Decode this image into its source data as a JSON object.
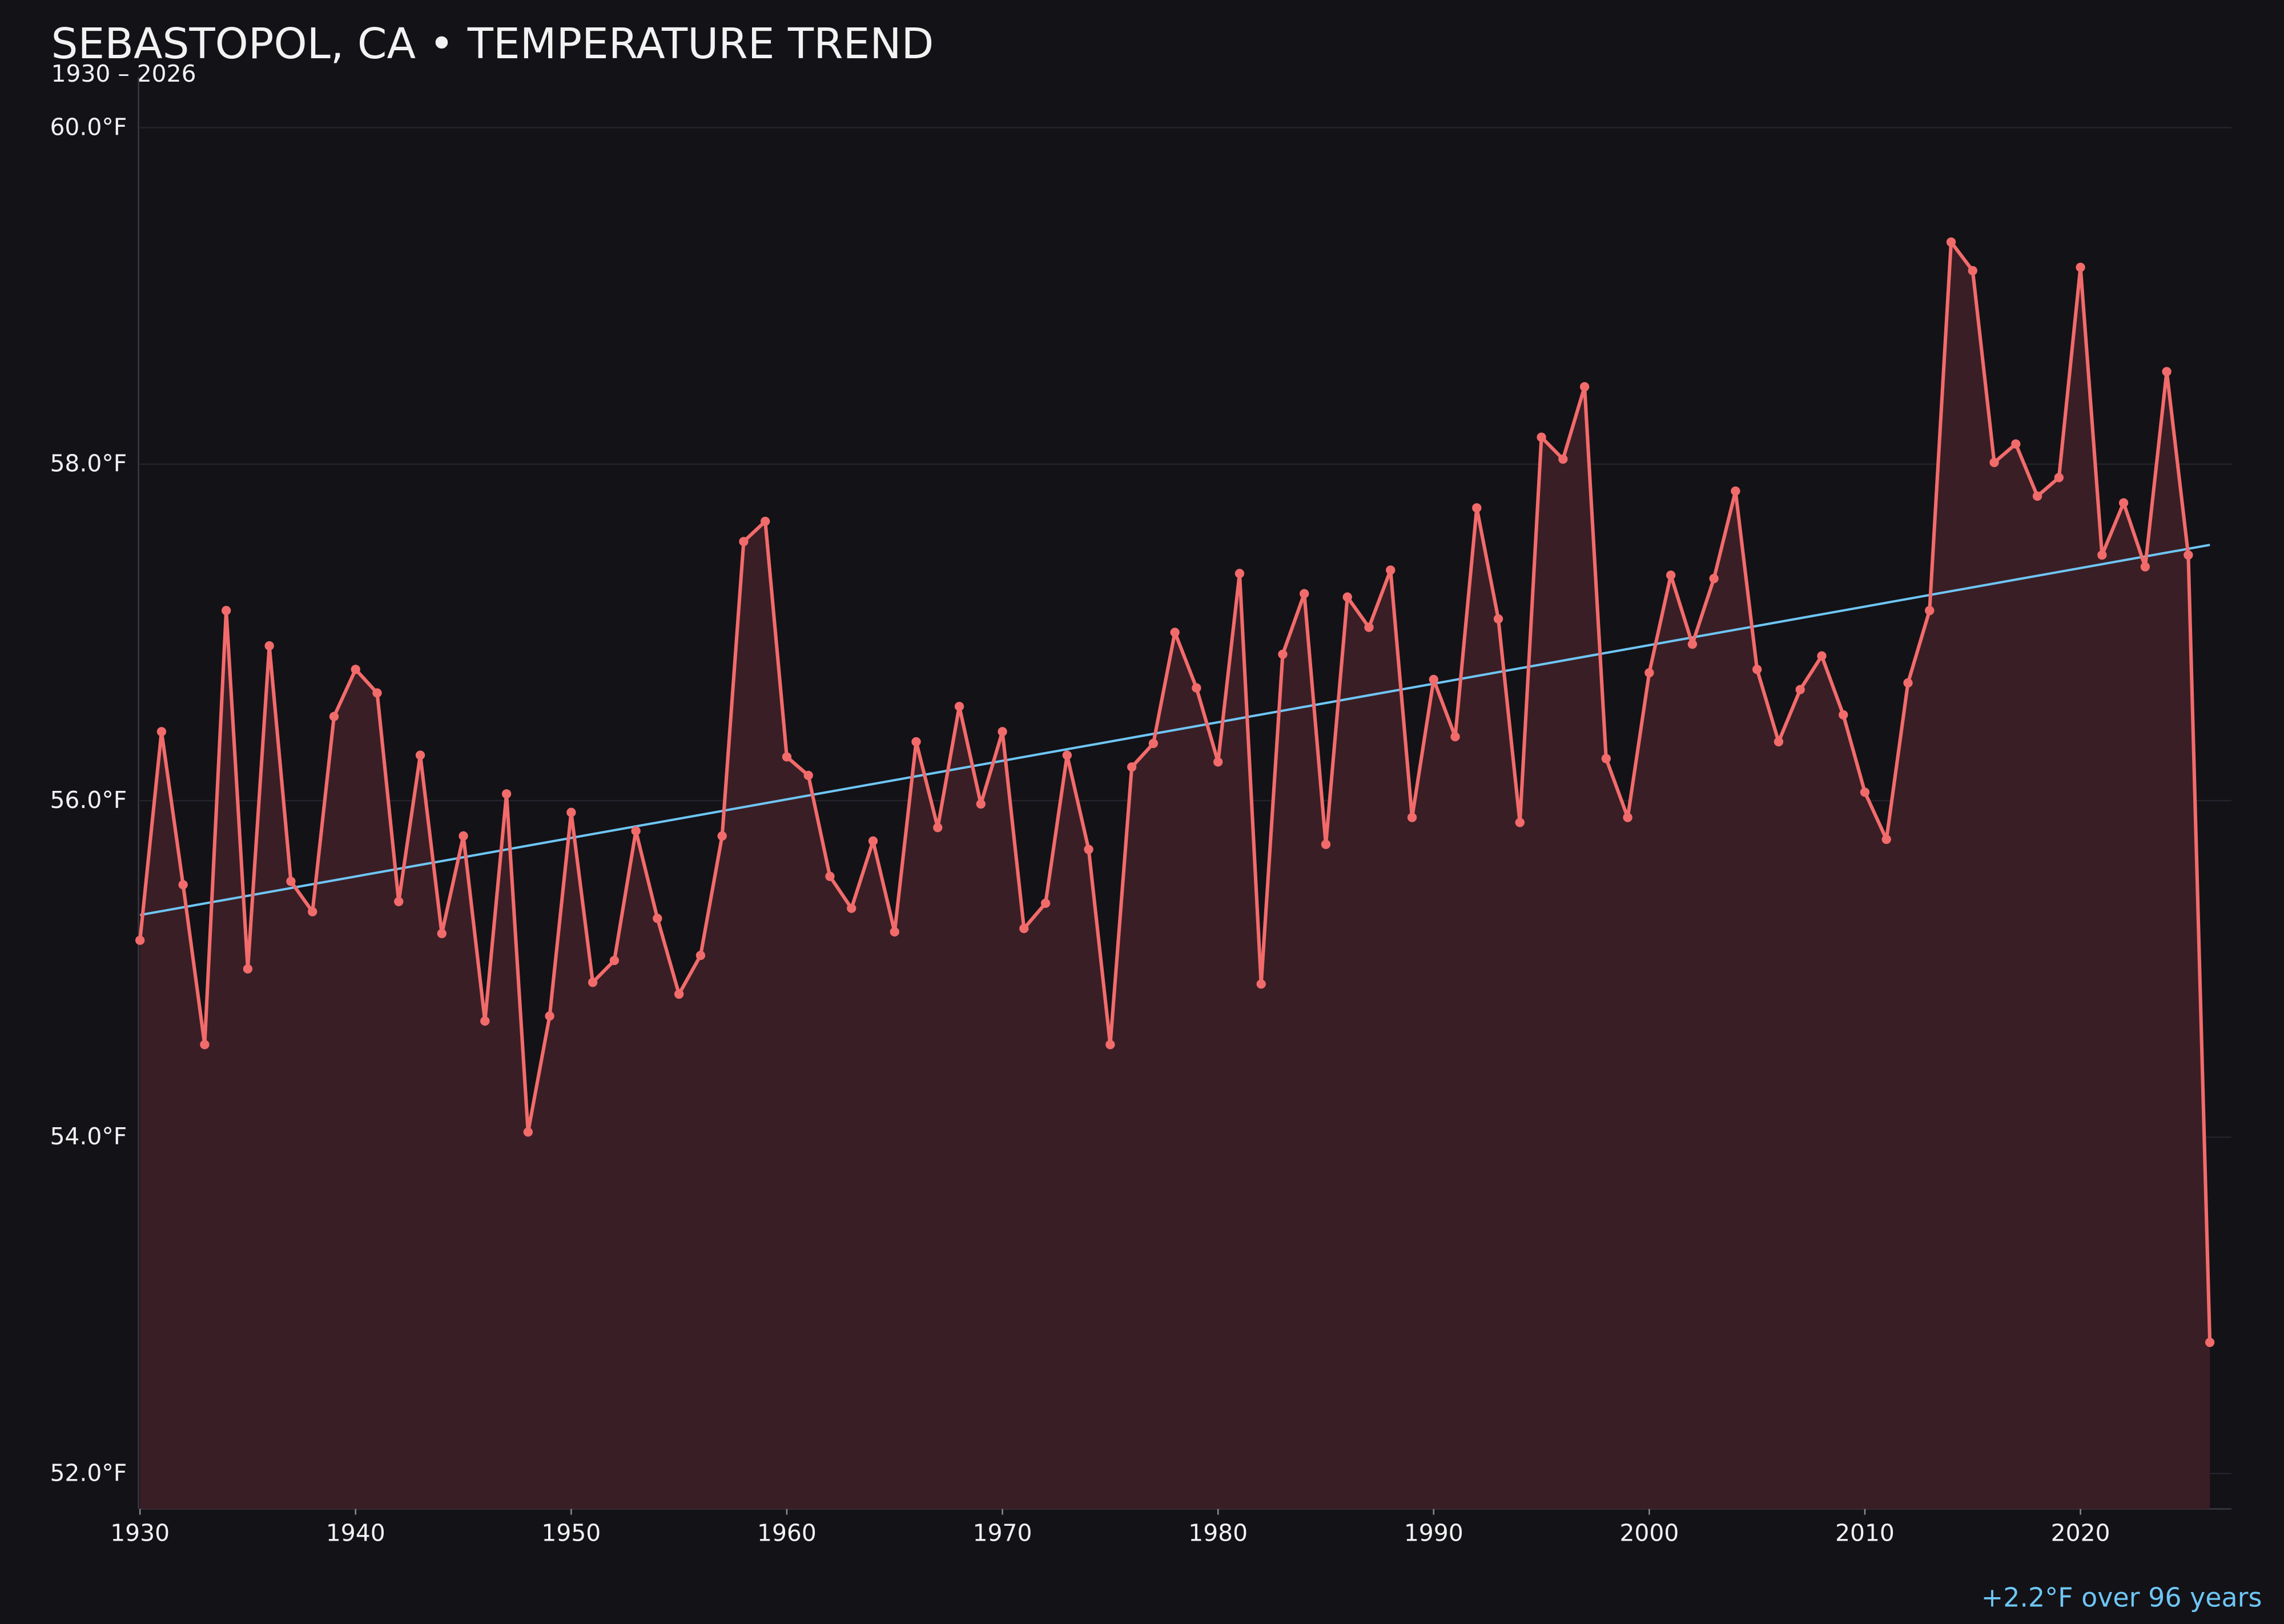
{
  "chart_data": {
    "type": "line",
    "title": "SEBASTOPOL, CA • TEMPERATURE TREND",
    "subtitle": "1930 – 2026",
    "annotation": "+2.2°F over 96 years",
    "x": [
      1930,
      1931,
      1932,
      1933,
      1934,
      1935,
      1936,
      1937,
      1938,
      1939,
      1940,
      1941,
      1942,
      1943,
      1944,
      1945,
      1946,
      1947,
      1948,
      1949,
      1950,
      1951,
      1952,
      1953,
      1954,
      1955,
      1956,
      1957,
      1958,
      1959,
      1960,
      1961,
      1962,
      1963,
      1964,
      1965,
      1966,
      1967,
      1968,
      1969,
      1970,
      1971,
      1972,
      1973,
      1974,
      1975,
      1976,
      1977,
      1978,
      1979,
      1980,
      1981,
      1982,
      1983,
      1984,
      1985,
      1986,
      1987,
      1988,
      1989,
      1990,
      1991,
      1992,
      1993,
      1994,
      1995,
      1996,
      1997,
      1998,
      1999,
      2000,
      2001,
      2002,
      2003,
      2004,
      2005,
      2006,
      2007,
      2008,
      2009,
      2010,
      2011,
      2012,
      2013,
      2014,
      2015,
      2016,
      2017,
      2018,
      2019,
      2020,
      2021,
      2022,
      2023,
      2024,
      2025,
      2026
    ],
    "values": [
      55.17,
      56.41,
      55.5,
      54.55,
      57.13,
      55.0,
      56.92,
      55.52,
      55.34,
      56.5,
      56.78,
      56.64,
      55.4,
      56.27,
      55.21,
      55.79,
      54.69,
      56.04,
      54.03,
      54.72,
      55.93,
      54.92,
      55.05,
      55.82,
      55.3,
      54.85,
      55.08,
      55.79,
      57.54,
      57.66,
      56.26,
      56.15,
      55.55,
      55.36,
      55.76,
      55.22,
      56.35,
      55.84,
      56.56,
      55.98,
      56.41,
      55.24,
      55.39,
      56.27,
      55.71,
      54.55,
      56.2,
      56.34,
      57.0,
      56.67,
      56.23,
      57.35,
      54.91,
      56.87,
      57.23,
      55.74,
      57.21,
      57.03,
      57.37,
      55.9,
      56.72,
      56.38,
      57.74,
      57.08,
      55.87,
      58.16,
      58.03,
      58.46,
      56.25,
      55.9,
      56.76,
      57.34,
      56.93,
      57.32,
      57.84,
      56.78,
      56.35,
      56.66,
      56.86,
      56.51,
      56.05,
      55.77,
      56.7,
      57.13,
      59.32,
      59.15,
      58.01,
      58.12,
      57.81,
      57.92,
      59.17,
      57.46,
      57.77,
      57.39,
      58.55,
      57.46,
      52.78
    ],
    "color": "#f26b6b",
    "area_color": "#3a1e25",
    "trend": {
      "x": [
        1930,
        2026
      ],
      "values": [
        55.32,
        57.52
      ],
      "color": "#6ec6f5"
    },
    "xlim": [
      1930,
      2027
    ],
    "ylim": [
      51.79,
      60.3
    ],
    "xticks": [
      1930,
      1940,
      1950,
      1960,
      1970,
      1980,
      1990,
      2000,
      2010,
      2020
    ],
    "yticks": [
      {
        "value": 52,
        "label": "52.0°F"
      },
      {
        "value": 54,
        "label": "54.0°F"
      },
      {
        "value": 56,
        "label": "56.0°F"
      },
      {
        "value": 58,
        "label": "58.0°F"
      },
      {
        "value": 60,
        "label": "60.0°F"
      }
    ],
    "grid": true
  }
}
